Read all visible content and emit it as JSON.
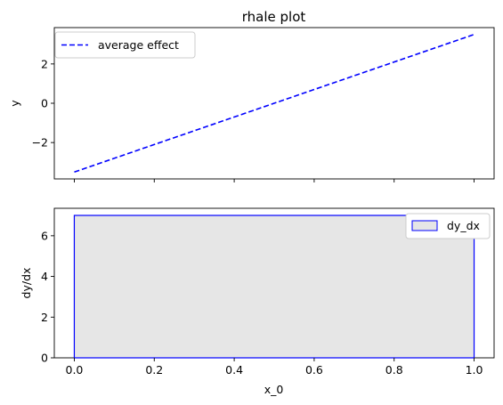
{
  "chart_data": [
    {
      "type": "line",
      "title": "rhale plot",
      "xlabel": "",
      "ylabel": "y",
      "xlim": [
        -0.05,
        1.05
      ],
      "ylim": [
        -3.85,
        3.85
      ],
      "x_ticks": [
        0.0,
        0.2,
        0.4,
        0.6,
        0.8,
        1.0
      ],
      "y_ticks": [
        -2,
        0,
        2
      ],
      "y_tick_labels": [
        "−2",
        "0",
        "2"
      ],
      "series": [
        {
          "name": "average effect",
          "style": "dashed",
          "color": "#0000ff",
          "x": [
            0.0,
            1.0
          ],
          "y": [
            -3.5,
            3.5
          ]
        }
      ],
      "legend": {
        "placement": "top-left",
        "entries": [
          "average effect"
        ]
      }
    },
    {
      "type": "bar",
      "title": "",
      "xlabel": "x_0",
      "ylabel": "dy/dx",
      "xlim": [
        -0.05,
        1.05
      ],
      "ylim": [
        0,
        7.35
      ],
      "x_ticks": [
        0.0,
        0.2,
        0.4,
        0.6,
        0.8,
        1.0
      ],
      "x_tick_labels": [
        "0.0",
        "0.2",
        "0.4",
        "0.6",
        "0.8",
        "1.0"
      ],
      "y_ticks": [
        0,
        2,
        4,
        6
      ],
      "y_tick_labels": [
        "0",
        "2",
        "4",
        "6"
      ],
      "series": [
        {
          "name": "dy_dx",
          "fill": "#e6e6e6",
          "edge": "#0000ff",
          "bins": [
            {
              "x0": 0.0,
              "x1": 1.0,
              "value": 7.0
            }
          ]
        }
      ],
      "legend": {
        "placement": "top-right",
        "entries": [
          "dy_dx"
        ]
      }
    }
  ]
}
